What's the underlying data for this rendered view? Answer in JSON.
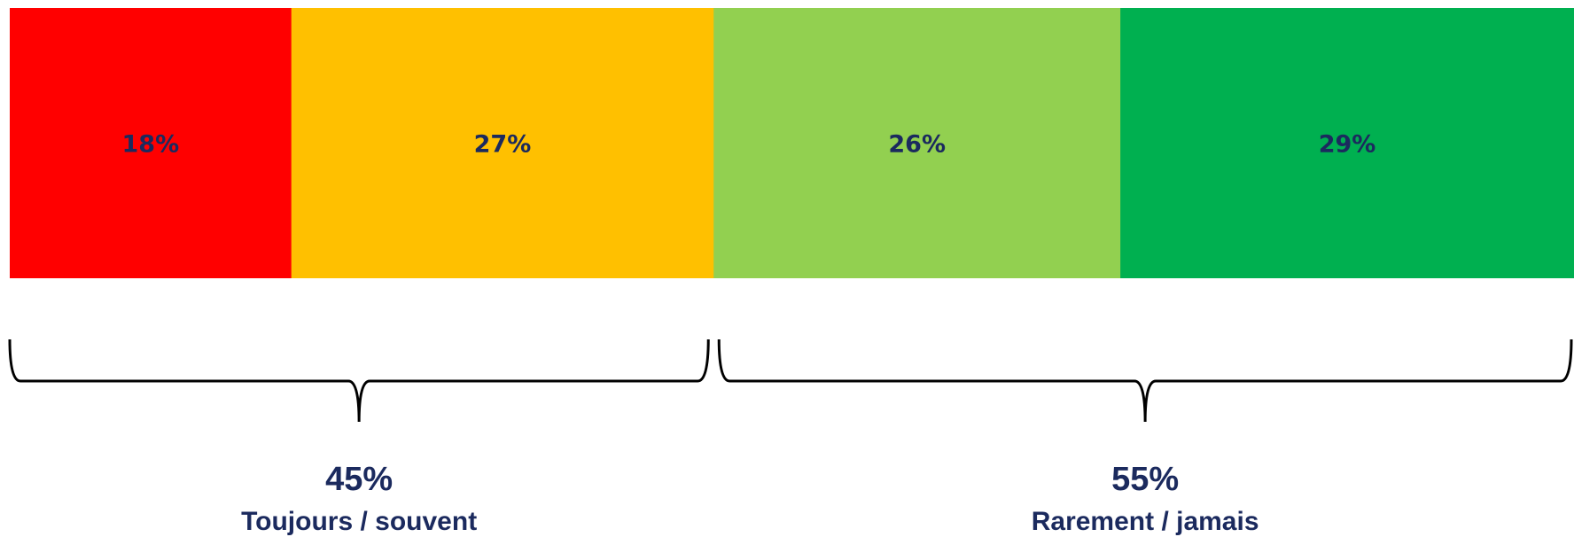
{
  "chart_data": {
    "type": "bar",
    "orientation": "horizontal",
    "stacked": true,
    "xlim": [
      0,
      100
    ],
    "grid": false,
    "segments": [
      {
        "value": 18,
        "label": "18%",
        "color": "#ff0000"
      },
      {
        "value": 27,
        "label": "27%",
        "color": "#ffc000"
      },
      {
        "value": 26,
        "label": "26%",
        "color": "#92d050"
      },
      {
        "value": 29,
        "label": "29%",
        "color": "#00b050"
      }
    ],
    "groups": [
      {
        "value": 45,
        "value_label": "45%",
        "label": "Toujours / souvent",
        "segment_indices": [
          0,
          1
        ]
      },
      {
        "value": 55,
        "value_label": "55%",
        "label": "Rarement / jamais",
        "segment_indices": [
          2,
          3
        ]
      }
    ],
    "text_color": "#1b2a5e",
    "brace_color": "#000000"
  }
}
